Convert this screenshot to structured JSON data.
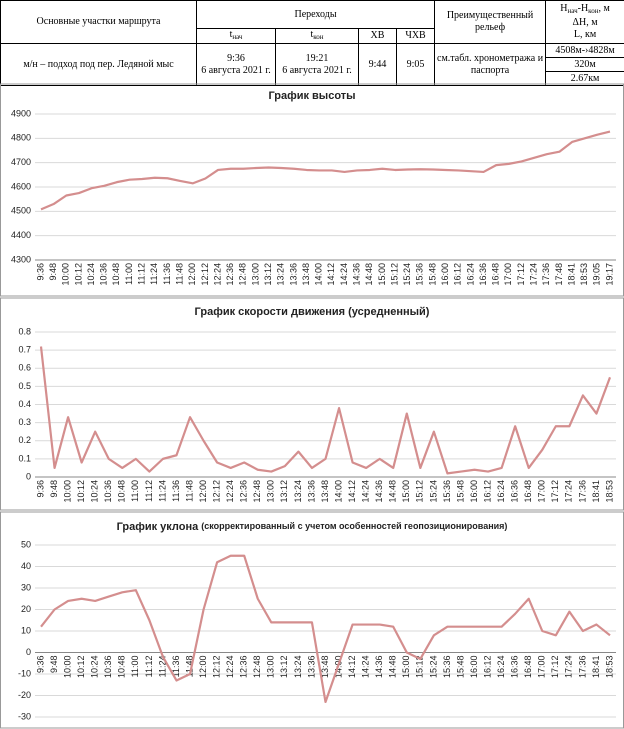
{
  "table": {
    "header": {
      "section": "Основные участки маршрута",
      "transitions": "Переходы",
      "t_start": [
        "t",
        "нач"
      ],
      "t_end": [
        "t",
        "кон"
      ],
      "hv": "ХВ",
      "chv": "ЧХВ",
      "relief": "Преимущественный рельеф",
      "height_range": [
        "H",
        "нач",
        "-H",
        "кон",
        ", м"
      ],
      "height_diff": "ΔH, м",
      "length": "L, км"
    },
    "row": {
      "section": "м/н – подход под пер. Ледяной мыс",
      "t_start": [
        "9:36",
        "6 августа 2021 г."
      ],
      "t_end": [
        "19:21",
        "6 августа 2021 г."
      ],
      "hv": "9:44",
      "chv": "9:05",
      "relief": "см.табл. хронометража и паспорта",
      "height": [
        "4508м-›4828м",
        "320м",
        "2.67км"
      ]
    }
  },
  "chart_data": [
    {
      "type": "line",
      "title": "График высоты",
      "color": "#d48e8e",
      "grid": true,
      "categories": [
        "9:36",
        "9:48",
        "10:00",
        "10:12",
        "10:24",
        "10:36",
        "10:48",
        "11:00",
        "11:12",
        "11:24",
        "11:36",
        "11:48",
        "12:00",
        "12:12",
        "12:24",
        "12:36",
        "12:48",
        "13:00",
        "13:12",
        "13:24",
        "13:36",
        "13:48",
        "14:00",
        "14:12",
        "14:24",
        "14:36",
        "14:48",
        "15:00",
        "15:12",
        "15:24",
        "15:36",
        "15:48",
        "16:00",
        "16:12",
        "16:24",
        "16:36",
        "16:48",
        "17:00",
        "17:12",
        "17:24",
        "17:36",
        "17:48",
        "18:41",
        "18:53",
        "19:05",
        "19:17"
      ],
      "values": [
        4508,
        4530,
        4565,
        4575,
        4595,
        4605,
        4620,
        4630,
        4633,
        4638,
        4636,
        4625,
        4615,
        4635,
        4670,
        4675,
        4675,
        4678,
        4680,
        4678,
        4675,
        4670,
        4668,
        4668,
        4662,
        4668,
        4670,
        4675,
        4670,
        4672,
        4673,
        4672,
        4670,
        4668,
        4665,
        4662,
        4690,
        4695,
        4705,
        4720,
        4735,
        4745,
        4785,
        4800,
        4815,
        4828
      ],
      "ylim": [
        4300,
        4900
      ],
      "yticks": [
        4300,
        4400,
        4500,
        4600,
        4700,
        4800,
        4900
      ]
    },
    {
      "type": "line",
      "title": "График скорости движения (усредненный)",
      "color": "#d48e8e",
      "grid": true,
      "categories": [
        "9:36",
        "9:48",
        "10:00",
        "10:12",
        "10:24",
        "10:36",
        "10:48",
        "11:00",
        "11:12",
        "11:24",
        "11:36",
        "11:48",
        "12:00",
        "12:12",
        "12:24",
        "12:36",
        "12:48",
        "13:00",
        "13:12",
        "13:24",
        "13:36",
        "13:48",
        "14:00",
        "14:12",
        "14:24",
        "14:36",
        "14:48",
        "15:00",
        "15:12",
        "15:24",
        "15:36",
        "15:48",
        "16:00",
        "16:12",
        "16:24",
        "16:36",
        "16:48",
        "17:00",
        "17:12",
        "17:24",
        "17:36",
        "18:41",
        "18:53"
      ],
      "values": [
        0.72,
        0.05,
        0.33,
        0.08,
        0.25,
        0.1,
        0.05,
        0.1,
        0.03,
        0.1,
        0.12,
        0.33,
        0.2,
        0.08,
        0.05,
        0.08,
        0.04,
        0.03,
        0.06,
        0.14,
        0.05,
        0.1,
        0.38,
        0.08,
        0.05,
        0.1,
        0.05,
        0.35,
        0.05,
        0.25,
        0.02,
        0.03,
        0.04,
        0.03,
        0.05,
        0.28,
        0.05,
        0.15,
        0.28,
        0.28,
        0.45,
        0.35,
        0.55
      ],
      "ylim": [
        0,
        0.8
      ],
      "yticks": [
        0,
        0.1,
        0.2,
        0.3,
        0.4,
        0.5,
        0.6,
        0.7,
        0.8
      ]
    },
    {
      "type": "line",
      "title": "График уклона",
      "subtitle": "(скорректированный  с учетом  особенностей  геопозиционирования)",
      "color": "#d48e8e",
      "grid": true,
      "categories": [
        "9:36",
        "9:48",
        "10:00",
        "10:12",
        "10:24",
        "10:36",
        "10:48",
        "11:00",
        "11:12",
        "11:24",
        "11:36",
        "11:48",
        "12:00",
        "12:12",
        "12:24",
        "12:36",
        "12:48",
        "13:00",
        "13:12",
        "13:24",
        "13:36",
        "13:48",
        "14:00",
        "14:12",
        "14:24",
        "14:36",
        "14:48",
        "15:00",
        "15:12",
        "15:24",
        "15:36",
        "15:48",
        "16:00",
        "16:12",
        "16:24",
        "16:36",
        "16:48",
        "17:00",
        "17:12",
        "17:24",
        "17:36",
        "18:41",
        "18:53"
      ],
      "values": [
        12,
        20,
        24,
        25,
        24,
        26,
        28,
        29,
        15,
        -2,
        -13,
        -10,
        20,
        42,
        45,
        45,
        25,
        14,
        14,
        14,
        14,
        -23,
        -5,
        13,
        13,
        13,
        12,
        0,
        -3,
        8,
        12,
        12,
        12,
        12,
        12,
        18,
        25,
        10,
        8,
        19,
        10,
        13,
        8
      ],
      "ylim": [
        -30,
        50
      ],
      "yticks": [
        -30,
        -20,
        -10,
        0,
        10,
        20,
        30,
        40,
        50
      ]
    }
  ]
}
